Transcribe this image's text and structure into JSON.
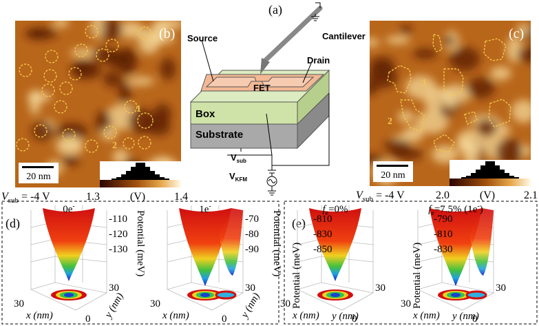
{
  "panel_b": {
    "label": "(b)",
    "markers": [
      "1",
      "2"
    ],
    "scale_bar": "20 nm",
    "bias": {
      "symbol": "V",
      "subscript": "sub",
      "value": " = -4 V"
    },
    "colorbar": {
      "min": "1.3",
      "unit": "(V)",
      "max": "1.4"
    }
  },
  "panel_a": {
    "label": "(a)",
    "labels": {
      "cantilever": "Cantilever",
      "source": "Source",
      "drain": "Drain",
      "fet": "FET",
      "box": "Box",
      "substrate": "Substrate"
    },
    "v_sub": {
      "symbol": "V",
      "subscript": "sub"
    },
    "v_kfm": {
      "symbol": "V",
      "subscript": "KFM"
    }
  },
  "panel_c": {
    "label": "(c)",
    "markers": [
      "1",
      "2"
    ],
    "scale_bar": "20 nm",
    "bias": {
      "symbol": "V",
      "subscript": "sub",
      "value": " = -4 V"
    },
    "colorbar": {
      "min": "2.0",
      "unit": "(V)",
      "max": "2.1"
    }
  },
  "panel_d": {
    "label": "(d)",
    "plots": [
      {
        "title": {
          "text": "0e",
          "sup": "-"
        },
        "z_ticks": [
          "-110",
          "-120",
          "-130"
        ],
        "z_label": "Potential (meV)",
        "x_label": "x (nm)",
        "y_label": "y (nm)",
        "x_tick": "30",
        "y_tick": "30",
        "origin": "0"
      },
      {
        "title": {
          "text": "1e",
          "sup": "-"
        },
        "z_ticks": [
          "-70",
          "-80",
          "-90"
        ],
        "z_label": "Potential (meV)",
        "x_label": "x (nm)",
        "y_label": "y (nm)",
        "x_tick": "30",
        "y_tick": "30",
        "origin": "0"
      }
    ]
  },
  "panel_e": {
    "label": "(e)",
    "plots": [
      {
        "title": {
          "symbol": "f",
          "subscript": "e",
          "text": "=0%"
        },
        "z_ticks": [
          "-810",
          "-830",
          "-850"
        ],
        "z_label": "Potential (meV)",
        "x_label": "x (nm)",
        "y_label": "y (nm)",
        "x_tick": "30",
        "y_tick": "30",
        "origin": "0"
      },
      {
        "title": {
          "symbol": "f",
          "subscript": "e",
          "text": "=7.5% (1e",
          "sup": "-",
          "tail": ")"
        },
        "z_ticks": [
          "-790",
          "-810",
          "-830"
        ],
        "z_label": "Potential (meV)",
        "x_label": "x (nm)",
        "y_label": "y (nm)",
        "x_tick": "30",
        "y_tick": "30",
        "origin": "0"
      }
    ]
  }
}
